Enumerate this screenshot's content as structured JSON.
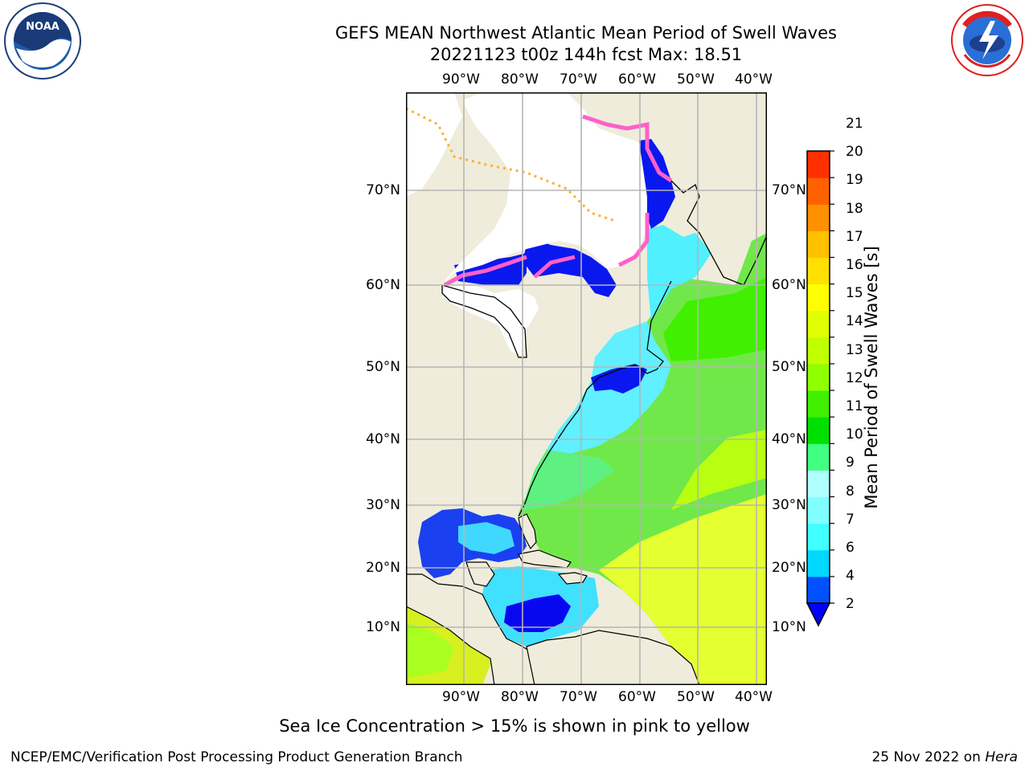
{
  "title": {
    "line1": "GEFS MEAN Northwest Atlantic Mean Period of Swell Waves",
    "line2": "20221123 t00z 144h fcst   Max: 18.51"
  },
  "map": {
    "lon_labels": [
      "90°W",
      "80°W",
      "70°W",
      "60°W",
      "50°W",
      "40°W"
    ],
    "lat_labels": [
      "70°N",
      "60°N",
      "50°N",
      "40°N",
      "30°N",
      "20°N",
      "10°N"
    ],
    "colors": {
      "land": "#efecdc",
      "ice": "#ffffff",
      "grid": "#b5b5b5",
      "coast": "#000000"
    }
  },
  "colorbar": {
    "label": "Mean Period of Swell Waves [s]",
    "ticks": [
      "2",
      "4",
      "6",
      "7",
      "8",
      "9",
      "10",
      "11",
      "12",
      "13",
      "14",
      "15",
      "16",
      "17",
      "18",
      "19",
      "20",
      "21"
    ],
    "colors": [
      "#0050ff",
      "#00d8ff",
      "#40ffff",
      "#80ffff",
      "#b0ffff",
      "#40ff80",
      "#00e000",
      "#40f000",
      "#90ff00",
      "#c0ff00",
      "#e0ff00",
      "#ffff00",
      "#ffe000",
      "#ffc000",
      "#ff9000",
      "#ff6000",
      "#ff3000"
    ],
    "under_color": "#0000ff"
  },
  "note": "Sea Ice Concentration > 15% is shown in pink to yellow",
  "footer": {
    "left": "NCEP/EMC/Verification Post Processing Product Generation Branch",
    "date": "25 Nov 2022 on ",
    "machine": "Hera"
  },
  "logos": {
    "noaa": "NOAA",
    "nws": "NATIONAL WEATHER SERVICE"
  }
}
